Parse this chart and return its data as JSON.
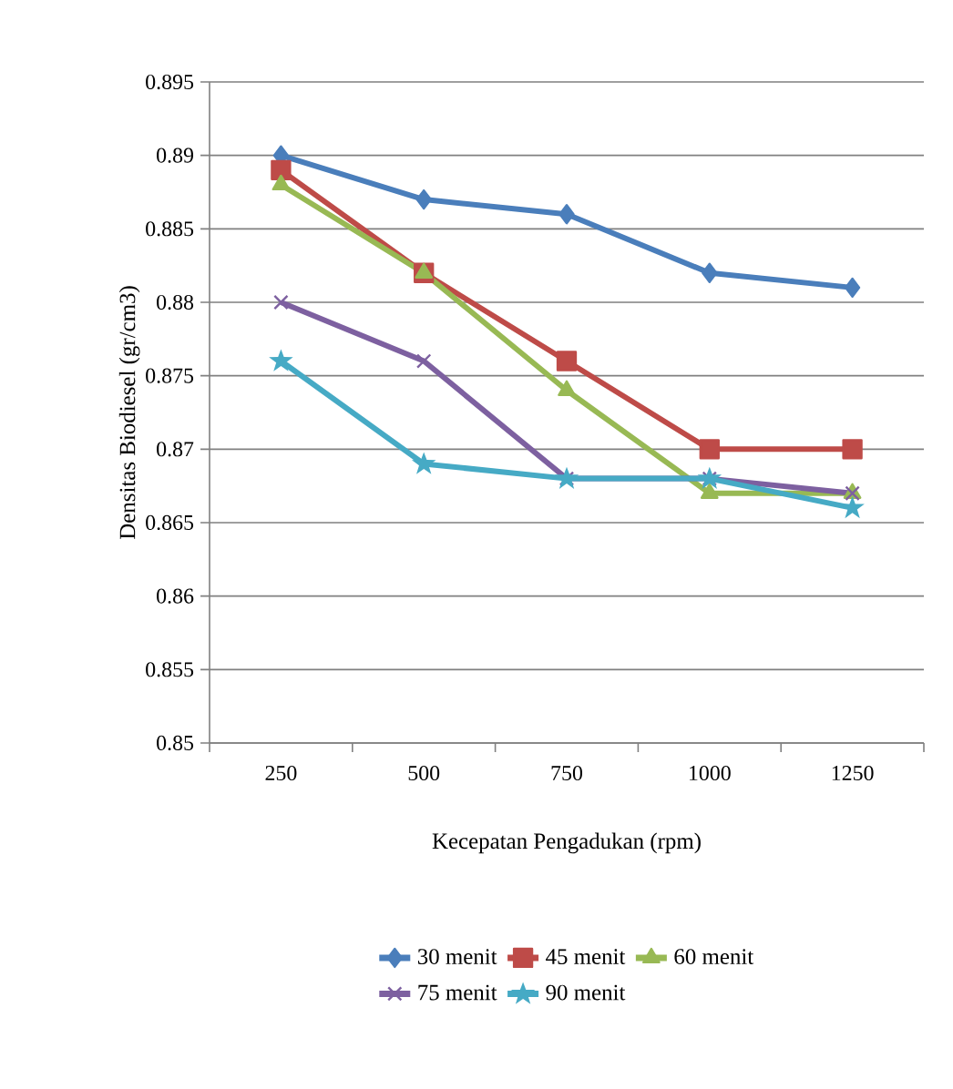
{
  "chart_data": {
    "type": "line",
    "xlabel": "Kecepatan Pengadukan (rpm)",
    "ylabel": "Densitas Biodiesel (gr/cm3)",
    "categories": [
      "250",
      "500",
      "750",
      "1000",
      "1250"
    ],
    "ylim": [
      0.85,
      0.895
    ],
    "yticks": [
      0.85,
      0.855,
      0.86,
      0.865,
      0.87,
      0.875,
      0.88,
      0.885,
      0.89,
      0.895
    ],
    "grid": "y",
    "legend": "bottom",
    "line_style": "solid",
    "series": [
      {
        "name": "30 menit",
        "color": "#4a7ebb",
        "marker": "diamond",
        "values": [
          0.89,
          0.887,
          0.886,
          0.882,
          0.881
        ]
      },
      {
        "name": "45 menit",
        "color": "#be4b48",
        "marker": "square",
        "values": [
          0.889,
          0.882,
          0.876,
          0.87,
          0.87
        ]
      },
      {
        "name": "60 menit",
        "color": "#98b954",
        "marker": "triangle",
        "values": [
          0.888,
          0.882,
          0.874,
          0.867,
          0.867
        ]
      },
      {
        "name": "75 menit",
        "color": "#7d60a0",
        "marker": "cross",
        "values": [
          0.88,
          0.876,
          0.868,
          0.868,
          0.867
        ]
      },
      {
        "name": "90 menit",
        "color": "#46aac5",
        "marker": "star",
        "values": [
          0.876,
          0.869,
          0.868,
          0.868,
          0.866
        ]
      }
    ]
  }
}
